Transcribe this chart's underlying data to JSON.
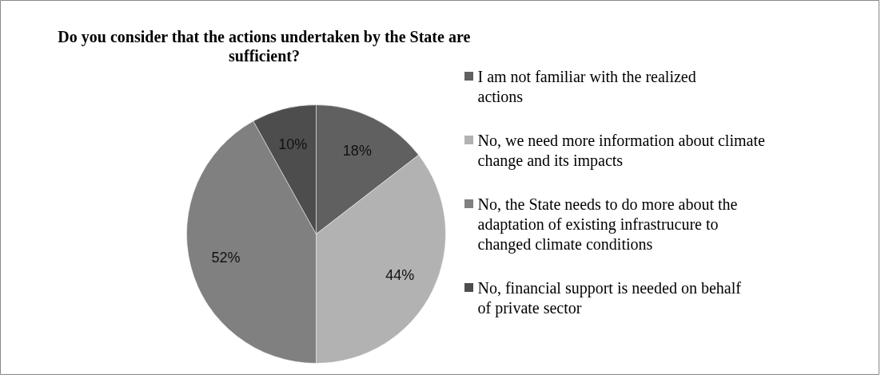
{
  "chart_data": {
    "type": "pie",
    "title": "Do you consider that the actions undertaken by the State are sufficient?",
    "categories": [
      "I am not familiar with the realized actions",
      "No, we need more information about climate change and its impacts",
      "No, the State needs to do more about the adaptation of existing infrastrucure to changed climate conditions",
      "No, financial support is needed on behalf of private sector"
    ],
    "values": [
      18,
      44,
      52,
      10
    ],
    "value_labels": [
      "18%",
      "44%",
      "52%",
      "10%"
    ],
    "colors": [
      "#606060",
      "#b2b2b2",
      "#808080",
      "#4d4d4d"
    ],
    "legend": "right"
  }
}
